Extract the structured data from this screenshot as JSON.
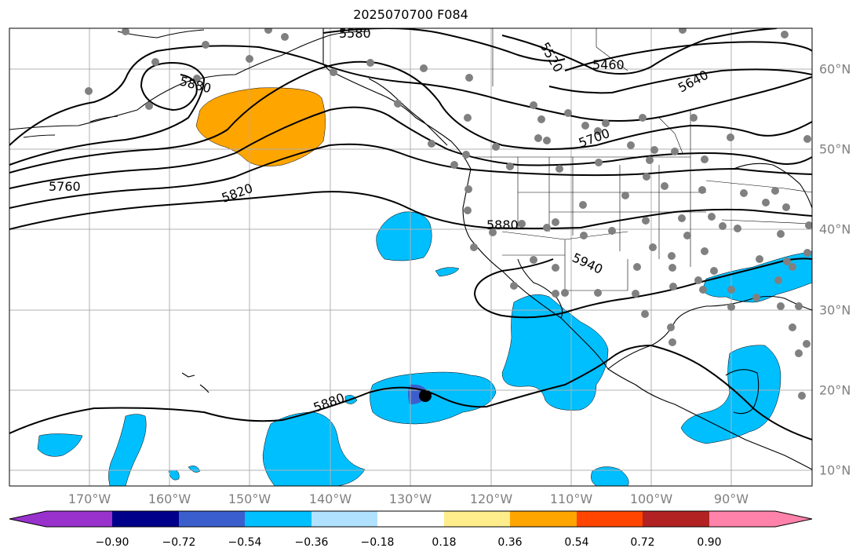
{
  "title": "2025070700 F084",
  "lon_labels": [
    "170°W",
    "160°W",
    "150°W",
    "140°W",
    "130°W",
    "120°W",
    "110°W",
    "100°W",
    "90°W"
  ],
  "lat_labels": [
    "60°N",
    "50°N",
    "40°N",
    "30°N",
    "20°N",
    "10°N"
  ],
  "contour_labels": [
    "5580",
    "5520",
    "5460",
    "5640",
    "5700",
    "5760",
    "5820",
    "5880",
    "5940",
    "5880",
    "5880"
  ],
  "colorbar": {
    "colors": [
      "#9932cc",
      "#00008b",
      "#3a5fcd",
      "#00bfff",
      "#b0e2ff",
      "#ffffff",
      "#ffec8b",
      "#ffa500",
      "#ff4500",
      "#b22222",
      "#ff82ab"
    ],
    "tick_labels": [
      "−0.90",
      "−0.72",
      "−0.54",
      "−0.36",
      "−0.18",
      "0.18",
      "0.36",
      "0.54",
      "0.72",
      "0.90"
    ]
  },
  "colors": {
    "positive_anomaly": "#ffa500",
    "negative_anomaly": "#00bfff",
    "strong_negative": "#3a5fcd",
    "stations": "#808080",
    "grid": "#b0b0b0"
  }
}
